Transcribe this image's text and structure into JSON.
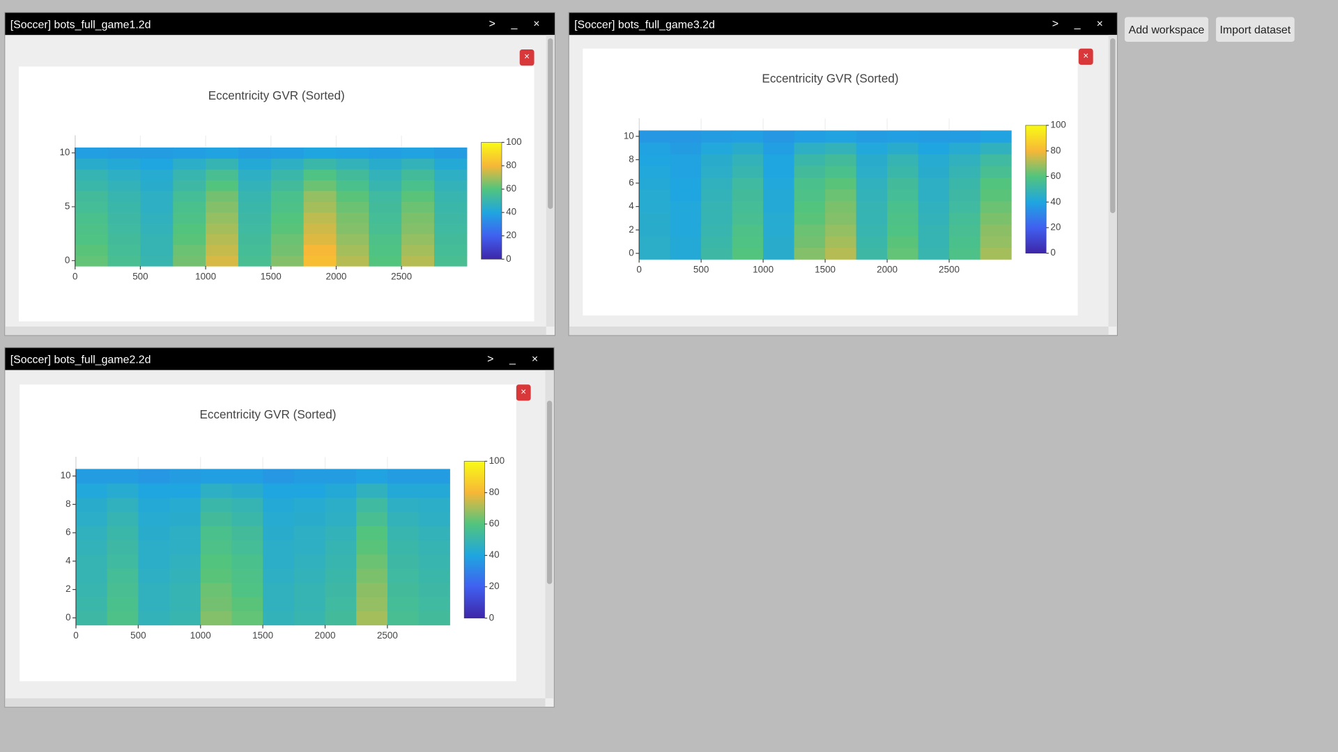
{
  "buttons": [
    "Add workspace",
    "Import dataset"
  ],
  "window_controls": [
    ">",
    "_",
    "×"
  ],
  "panel_close": "×",
  "windows": [
    {
      "title": "[Soccer] bots_full_game1.2d"
    },
    {
      "title": "[Soccer] bots_full_game3.2d"
    },
    {
      "title": "[Soccer] bots_full_game2.2d"
    }
  ],
  "chart_data": [
    {
      "type": "heatmap",
      "title": "Eccentricity GVR (Sorted)",
      "x": [
        125,
        375,
        625,
        875,
        1125,
        1375,
        1625,
        1875,
        2125,
        2375,
        2625,
        2875
      ],
      "y": [
        0,
        1,
        2,
        3,
        4,
        5,
        6,
        7,
        8,
        9,
        10
      ],
      "z": [
        [
          62,
          56,
          50,
          64,
          76,
          56,
          66,
          82,
          72,
          60,
          72,
          56
        ],
        [
          61,
          55,
          49,
          63,
          74,
          55,
          64,
          80,
          70,
          59,
          70,
          55
        ],
        [
          59,
          54,
          49,
          61,
          72,
          54,
          63,
          77,
          68,
          58,
          68,
          54
        ],
        [
          58,
          53,
          48,
          60,
          70,
          53,
          61,
          75,
          66,
          56,
          66,
          53
        ],
        [
          57,
          52,
          47,
          58,
          68,
          52,
          60,
          73,
          65,
          55,
          65,
          52
        ],
        [
          55,
          51,
          46,
          57,
          66,
          51,
          58,
          70,
          63,
          54,
          63,
          51
        ],
        [
          54,
          50,
          46,
          55,
          64,
          50,
          57,
          68,
          61,
          53,
          61,
          50
        ],
        [
          51,
          48,
          44,
          52,
          60,
          48,
          54,
          63,
          57,
          50,
          57,
          48
        ],
        [
          49,
          46,
          43,
          50,
          56,
          46,
          51,
          59,
          54,
          48,
          54,
          46
        ],
        [
          44,
          42,
          40,
          45,
          49,
          42,
          46,
          51,
          48,
          44,
          48,
          42
        ],
        [
          38,
          37,
          37,
          38,
          39,
          37,
          38,
          40,
          39,
          38,
          39,
          37
        ]
      ],
      "xlim": [
        0,
        3000
      ],
      "ylim": [
        -0.5,
        10.5
      ],
      "xticks": [
        0,
        500,
        1000,
        1500,
        2000,
        2500
      ],
      "yticks": [
        0,
        5,
        10
      ],
      "zlim": [
        0,
        100
      ],
      "zticks": [
        0,
        20,
        40,
        60,
        80,
        100
      ],
      "colorscale": [
        [
          0,
          "#3e26a8"
        ],
        [
          0.2,
          "#4060f0"
        ],
        [
          0.4,
          "#1fa6e0"
        ],
        [
          0.6,
          "#52c47e"
        ],
        [
          0.8,
          "#f7b737"
        ],
        [
          1,
          "#f9fb15"
        ]
      ]
    },
    {
      "type": "heatmap",
      "title": "Eccentricity GVR (Sorted)",
      "x": [
        125,
        375,
        625,
        875,
        1125,
        1375,
        1625,
        1875,
        2125,
        2375,
        2625,
        2875
      ],
      "y": [
        0,
        1,
        2,
        3,
        4,
        5,
        6,
        7,
        8,
        9,
        10
      ],
      "z": [
        [
          45,
          42,
          52,
          60,
          44,
          66,
          72,
          52,
          62,
          50,
          58,
          70
        ],
        [
          45,
          42,
          51,
          59,
          44,
          64,
          70,
          51,
          61,
          49,
          57,
          68
        ],
        [
          44,
          41,
          50,
          58,
          43,
          63,
          68,
          50,
          59,
          49,
          56,
          67
        ],
        [
          44,
          41,
          49,
          56,
          43,
          61,
          66,
          49,
          58,
          48,
          55,
          65
        ],
        [
          43,
          41,
          49,
          55,
          42,
          60,
          65,
          49,
          57,
          47,
          53,
          63
        ],
        [
          43,
          40,
          48,
          54,
          42,
          58,
          63,
          48,
          55,
          46,
          52,
          61
        ],
        [
          42,
          40,
          47,
          53,
          41,
          57,
          61,
          47,
          54,
          46,
          51,
          60
        ],
        [
          41,
          39,
          45,
          50,
          40,
          54,
          57,
          45,
          51,
          44,
          49,
          56
        ],
        [
          40,
          39,
          44,
          48,
          40,
          51,
          54,
          44,
          49,
          43,
          47,
          53
        ],
        [
          39,
          37,
          41,
          44,
          38,
          46,
          48,
          41,
          44,
          40,
          43,
          47
        ],
        [
          36,
          36,
          37,
          38,
          36,
          38,
          39,
          37,
          38,
          37,
          37,
          39
        ]
      ],
      "xlim": [
        0,
        3000
      ],
      "ylim": [
        -0.5,
        10.5
      ],
      "xticks": [
        0,
        500,
        1000,
        1500,
        2000,
        2500
      ],
      "yticks": [
        0,
        2,
        4,
        6,
        8,
        10
      ],
      "zlim": [
        0,
        100
      ],
      "zticks": [
        0,
        20,
        40,
        60,
        80,
        100
      ],
      "colorscale": [
        [
          0,
          "#3e26a8"
        ],
        [
          0.2,
          "#4060f0"
        ],
        [
          0.4,
          "#1fa6e0"
        ],
        [
          0.6,
          "#52c47e"
        ],
        [
          0.8,
          "#f7b737"
        ],
        [
          1,
          "#f9fb15"
        ]
      ]
    },
    {
      "type": "heatmap",
      "title": "Eccentricity GVR (Sorted)",
      "x": [
        125,
        375,
        625,
        875,
        1125,
        1375,
        1625,
        1875,
        2125,
        2375,
        2625,
        2875
      ],
      "y": [
        0,
        1,
        2,
        3,
        4,
        5,
        6,
        7,
        8,
        9,
        10
      ],
      "z": [
        [
          52,
          58,
          48,
          50,
          66,
          62,
          48,
          50,
          54,
          70,
          56,
          54
        ],
        [
          51,
          57,
          47,
          49,
          64,
          61,
          47,
          49,
          53,
          68,
          55,
          53
        ],
        [
          50,
          56,
          47,
          49,
          63,
          59,
          47,
          49,
          52,
          67,
          54,
          52
        ],
        [
          49,
          55,
          46,
          48,
          61,
          58,
          46,
          48,
          51,
          65,
          53,
          51
        ],
        [
          49,
          53,
          45,
          47,
          60,
          57,
          45,
          47,
          50,
          63,
          52,
          50
        ],
        [
          48,
          52,
          45,
          46,
          58,
          55,
          45,
          46,
          49,
          61,
          51,
          49
        ],
        [
          47,
          51,
          44,
          46,
          57,
          54,
          44,
          46,
          48,
          60,
          50,
          48
        ],
        [
          45,
          49,
          43,
          44,
          54,
          51,
          43,
          44,
          46,
          56,
          48,
          46
        ],
        [
          44,
          47,
          42,
          43,
          51,
          49,
          42,
          43,
          45,
          53,
          46,
          45
        ],
        [
          41,
          43,
          40,
          40,
          46,
          44,
          40,
          40,
          42,
          47,
          42,
          42
        ],
        [
          37,
          37,
          36,
          37,
          38,
          38,
          36,
          37,
          37,
          39,
          37,
          37
        ]
      ],
      "xlim": [
        0,
        3000
      ],
      "ylim": [
        -0.5,
        10.5
      ],
      "xticks": [
        0,
        500,
        1000,
        1500,
        2000,
        2500
      ],
      "yticks": [
        0,
        2,
        4,
        6,
        8,
        10
      ],
      "zlim": [
        0,
        100
      ],
      "zticks": [
        0,
        20,
        40,
        60,
        80,
        100
      ],
      "colorscale": [
        [
          0,
          "#3e26a8"
        ],
        [
          0.2,
          "#4060f0"
        ],
        [
          0.4,
          "#1fa6e0"
        ],
        [
          0.6,
          "#52c47e"
        ],
        [
          0.8,
          "#f7b737"
        ],
        [
          1,
          "#f9fb15"
        ]
      ]
    }
  ]
}
